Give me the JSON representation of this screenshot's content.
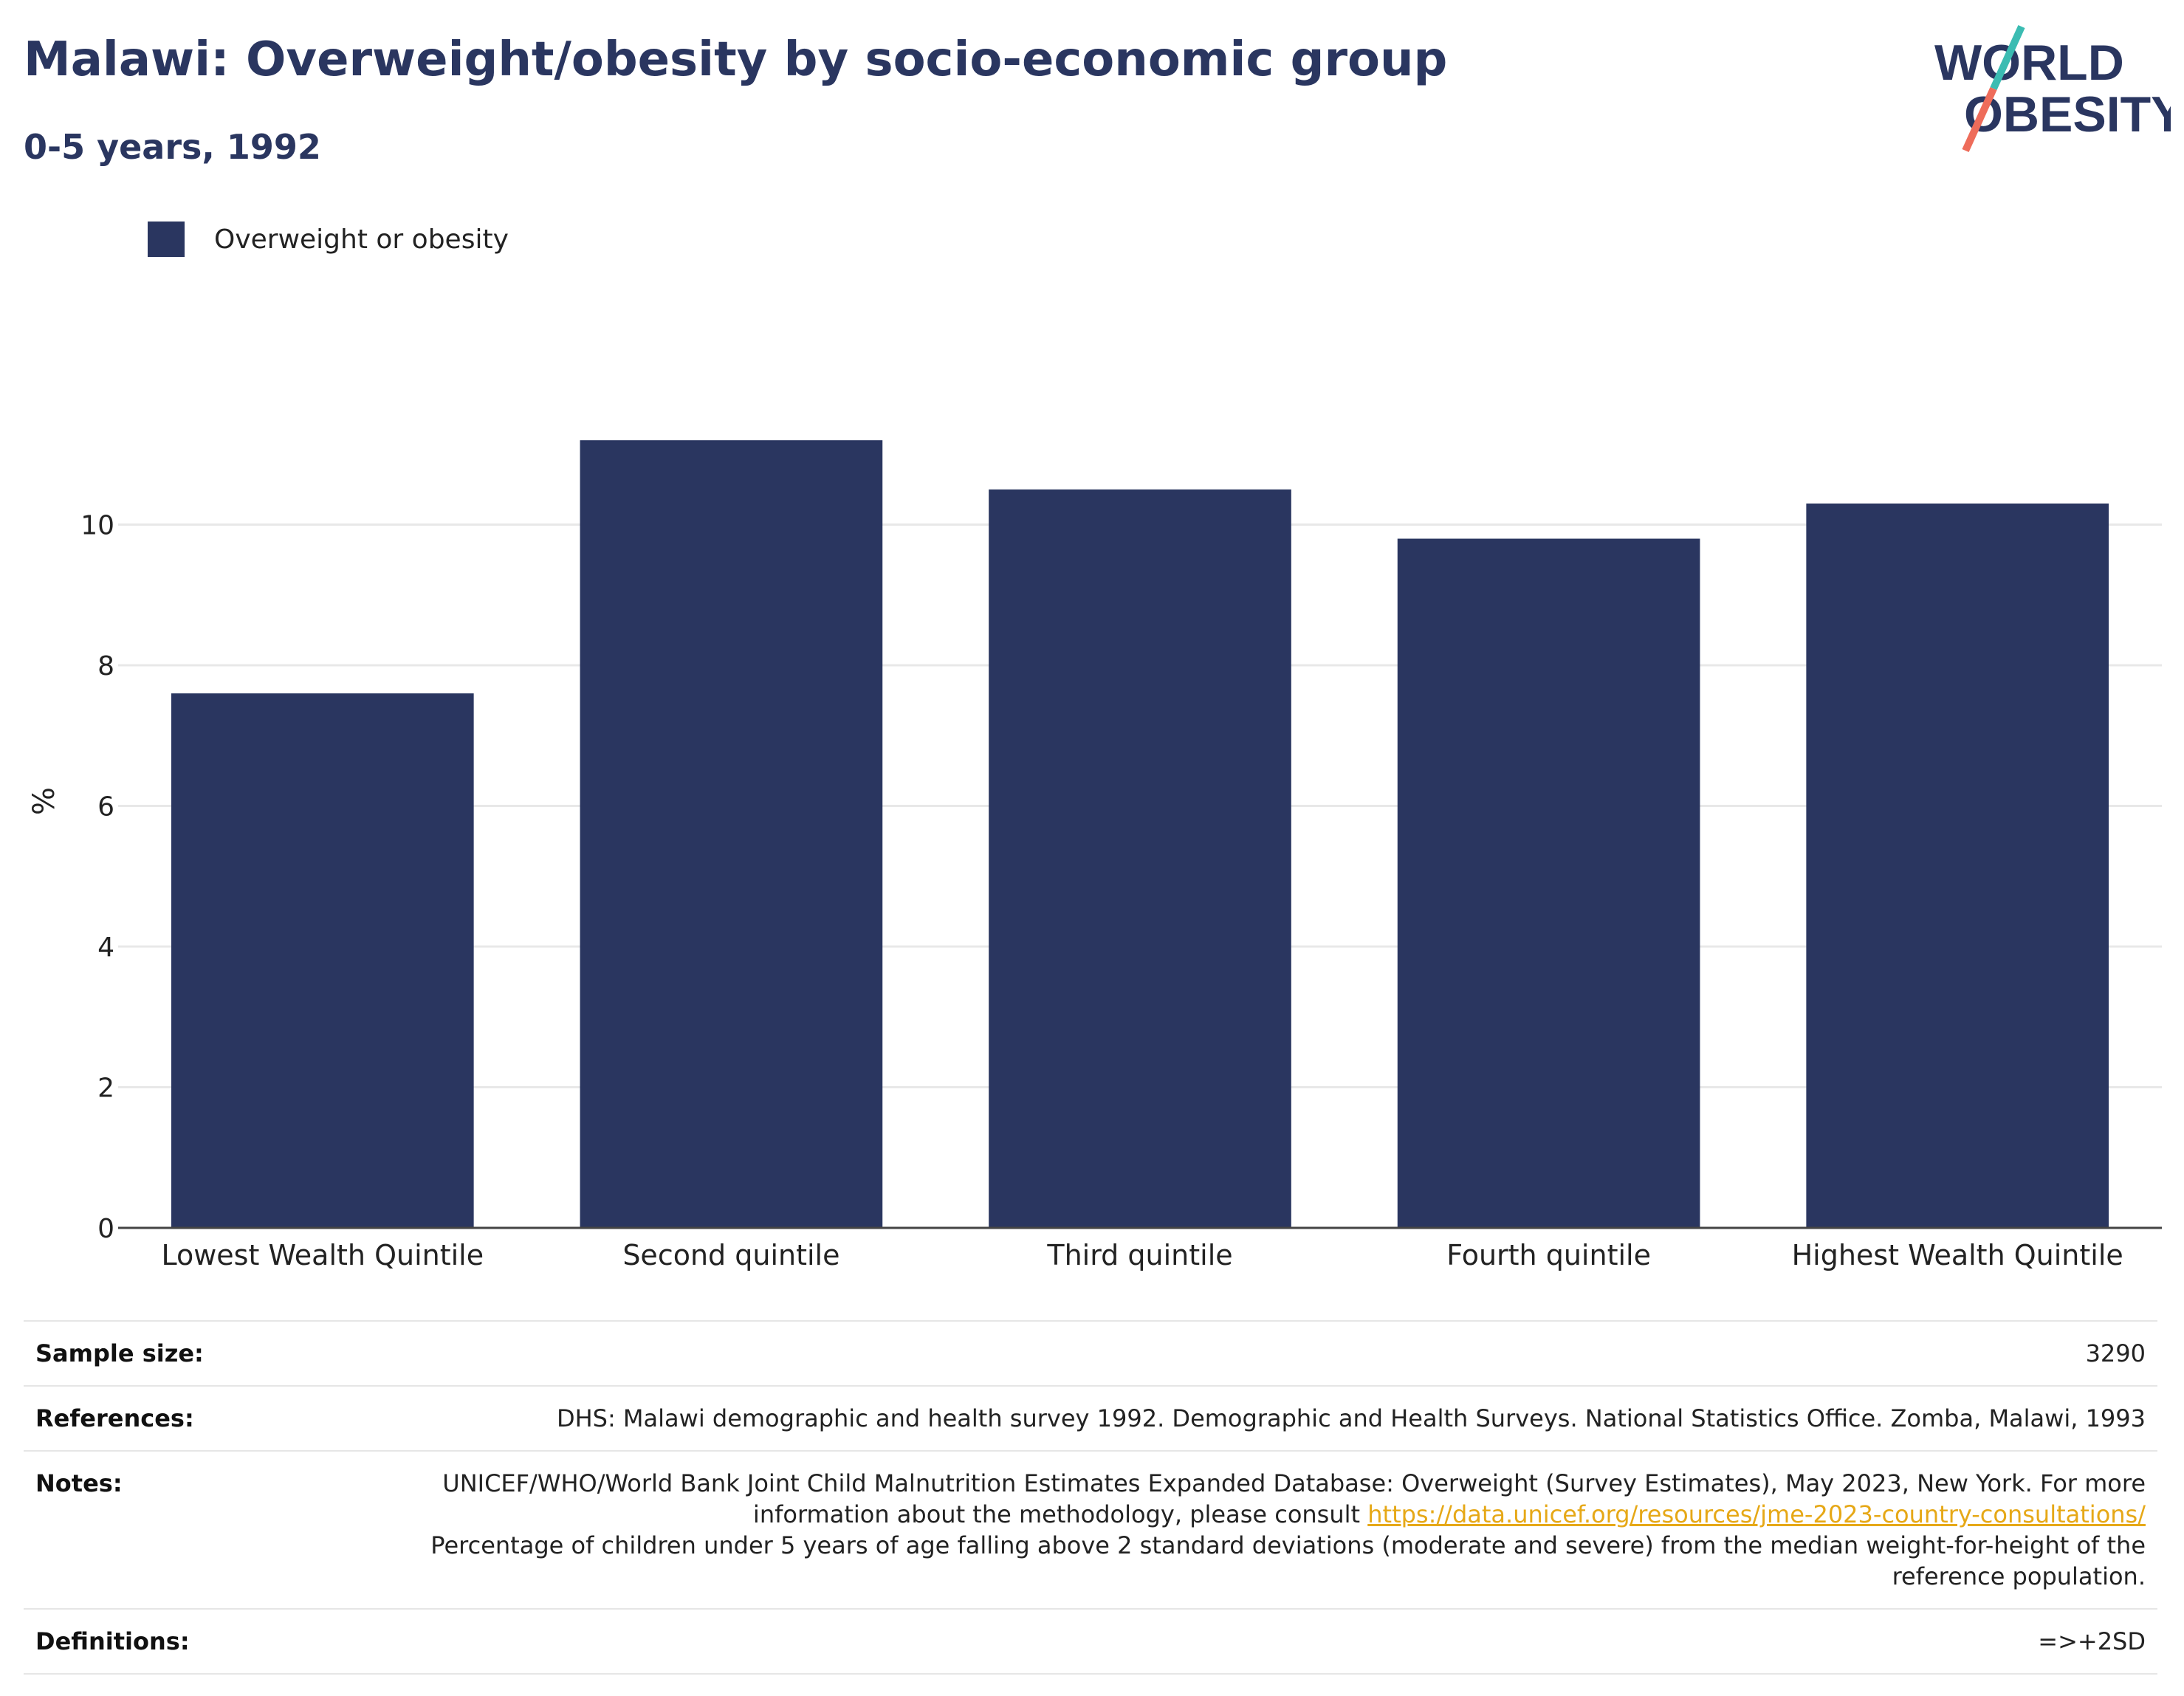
{
  "header": {
    "title": "Malawi: Overweight/obesity by socio-economic group",
    "subtitle": "0-5 years, 1992"
  },
  "logo": {
    "line1": "WORLD",
    "line2": "OBESITY",
    "colors": {
      "text": "#2a3660",
      "slash_top": "#3bbcb2",
      "slash_bottom": "#ee6c5a"
    }
  },
  "legend": {
    "items": [
      {
        "label": "Overweight or obesity",
        "color": "#2a3660"
      }
    ]
  },
  "chart_data": {
    "type": "bar",
    "categories": [
      "Lowest Wealth Quintile",
      "Second quintile",
      "Third quintile",
      "Fourth quintile",
      "Highest Wealth Quintile"
    ],
    "series": [
      {
        "name": "Overweight or obesity",
        "values": [
          7.6,
          11.2,
          10.5,
          9.8,
          10.3
        ],
        "color": "#2a3660"
      }
    ],
    "ylabel": "%",
    "ylim": [
      0,
      12
    ],
    "yticks": [
      0,
      2,
      4,
      6,
      8,
      10
    ],
    "grid": true,
    "legend_position": "top-left"
  },
  "info": {
    "sample_size_label": "Sample size:",
    "sample_size_value": "3290",
    "references_label": "References:",
    "references_value": "DHS: Malawi demographic and health survey 1992. Demographic and Health Surveys. National Statistics Office. Zomba, Malawi, 1993",
    "notes_label": "Notes:",
    "notes_text_before": "UNICEF/WHO/World Bank Joint Child Malnutrition Estimates Expanded Database: Overweight (Survey Estimates), May 2023, New York. For more information about the methodology, please consult",
    "notes_link": "https://data.unicef.org/resources/jme-2023-country-consultations/",
    "notes_text_after": "Percentage of children under 5 years of age falling above 2 standard deviations (moderate and severe) from the median weight-for-height of the reference population.",
    "definitions_label": "Definitions:",
    "definitions_value": "=>+2SD"
  }
}
